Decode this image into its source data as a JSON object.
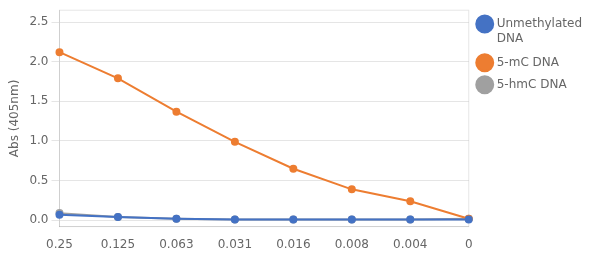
{
  "chart_data": {
    "type": "line",
    "categories": [
      "0.25",
      "0.125",
      "0.063",
      "0.031",
      "0.016",
      "0.008",
      "0.004",
      "0"
    ],
    "series": [
      {
        "name": "Unmethylated\nDNA",
        "color": "#4472C4",
        "marker": "circle",
        "values": [
          0.07,
          0.04,
          0.02,
          0.01,
          0.01,
          0.01,
          0.01,
          0.01
        ]
      },
      {
        "name": "5-mC DNA",
        "color": "#ED7D31",
        "marker": "circle",
        "values": [
          2.12,
          1.79,
          1.37,
          0.99,
          0.65,
          0.39,
          0.24,
          0.02
        ]
      },
      {
        "name": "5-hmC DNA",
        "color": "#A0A0A0",
        "marker": "circle",
        "values": [
          0.09,
          0.04,
          0.02,
          0.01,
          0.01,
          0.01,
          0.01,
          0.02
        ]
      }
    ],
    "ylabel": "Abs (405nm)",
    "ylim": [
      -0.08,
      2.65
    ],
    "yticks": [
      {
        "value": 0.0,
        "label": "0.0"
      },
      0.5,
      {
        "value": 1.0,
        "label": "1.0"
      },
      1.5,
      {
        "value": 2.0,
        "label": "2.0"
      },
      2.5
    ],
    "grid": true,
    "legend": "right"
  }
}
